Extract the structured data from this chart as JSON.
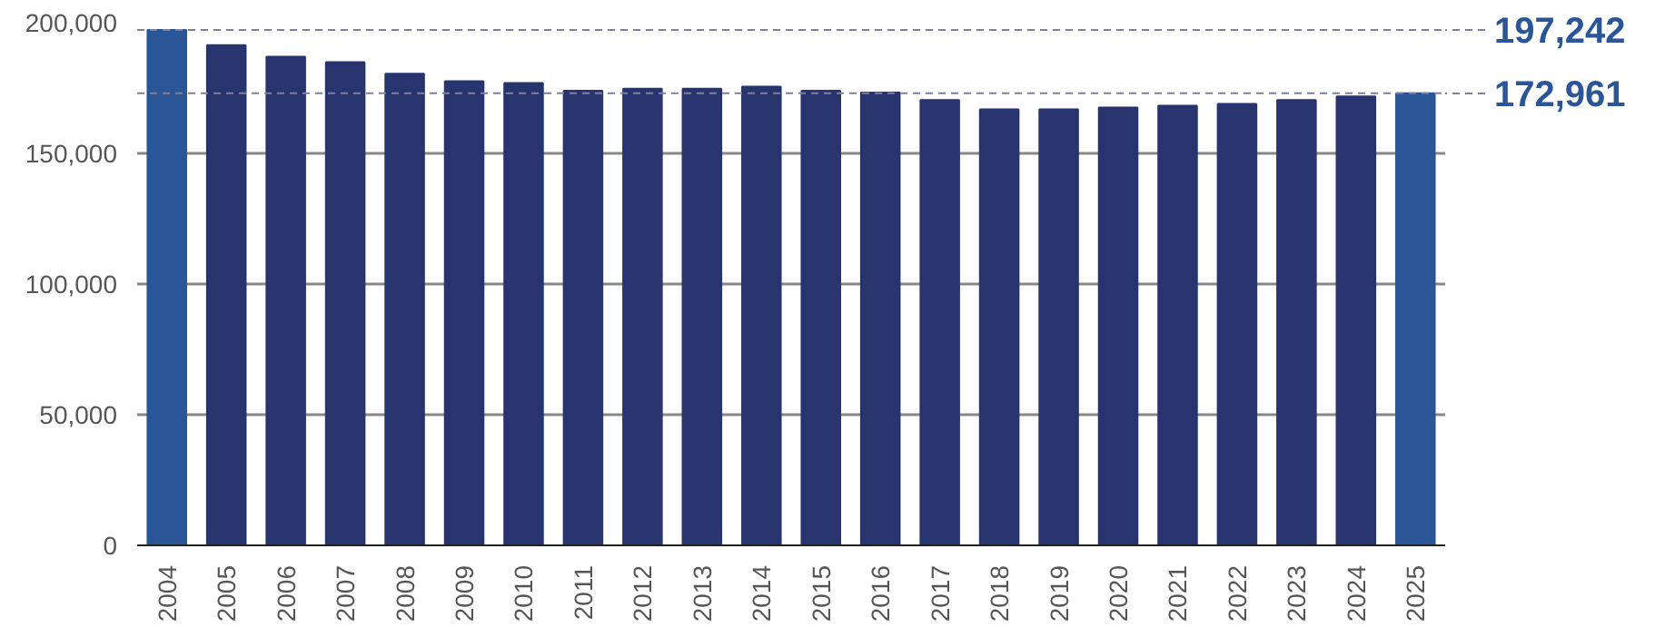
{
  "chart_data": {
    "type": "bar",
    "categories": [
      "2004",
      "2005",
      "2006",
      "2007",
      "2008",
      "2009",
      "2010",
      "2011",
      "2012",
      "2013",
      "2014",
      "2015",
      "2016",
      "2017",
      "2018",
      "2019",
      "2020",
      "2021",
      "2022",
      "2023",
      "2024",
      "2025"
    ],
    "values": [
      197242,
      191400,
      187000,
      184900,
      180500,
      177600,
      176900,
      174000,
      174700,
      174700,
      175500,
      174000,
      173300,
      170400,
      166800,
      166800,
      167500,
      168200,
      168900,
      170400,
      171800,
      172961
    ],
    "colors": [
      "#2a5597",
      "#27346e",
      "#27346e",
      "#27346e",
      "#27346e",
      "#27346e",
      "#27346e",
      "#27346e",
      "#27346e",
      "#27346e",
      "#27346e",
      "#27346e",
      "#27346e",
      "#27346e",
      "#27346e",
      "#27346e",
      "#27346e",
      "#27346e",
      "#27346e",
      "#27346e",
      "#27346e",
      "#2a5597"
    ],
    "ylim": [
      0,
      200000
    ],
    "yticks": [
      {
        "value": 0,
        "label": "0"
      },
      {
        "value": 50000,
        "label": "50,000"
      },
      {
        "value": 100000,
        "label": "100,000"
      },
      {
        "value": 150000,
        "label": "150,000"
      },
      {
        "value": 200000,
        "label": "200,000"
      }
    ],
    "grid": "y",
    "ref_lines": [
      {
        "axis": "y",
        "value": 197242,
        "label": "197,242",
        "color": "#7f7fa0",
        "line_style": "dashed"
      },
      {
        "axis": "y",
        "value": 172961,
        "label": "172,961",
        "color": "#7f7fa0",
        "line_style": "dashed"
      }
    ]
  }
}
